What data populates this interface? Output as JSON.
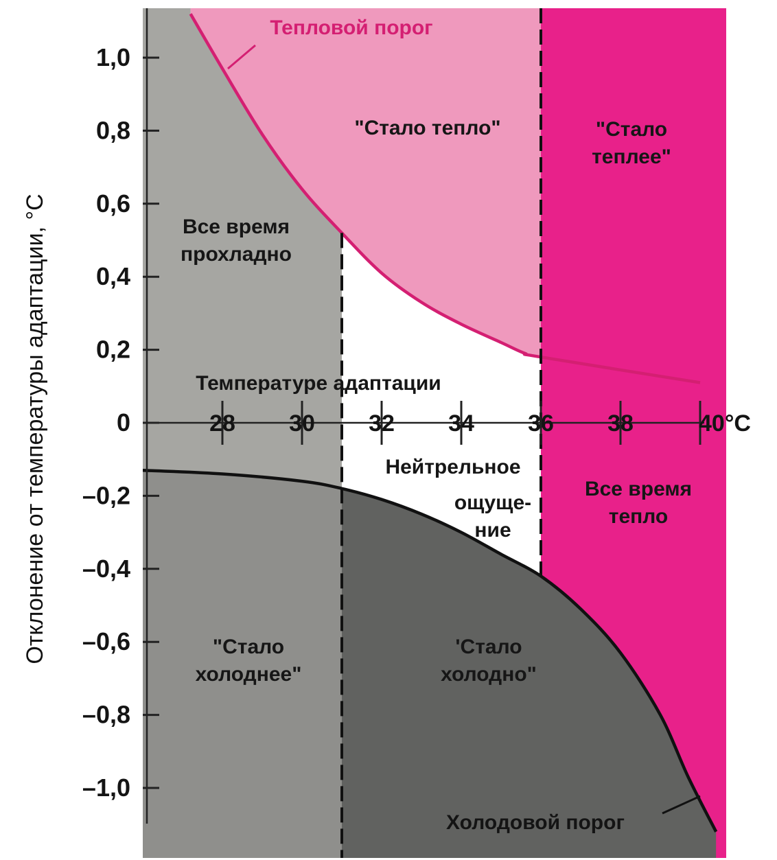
{
  "chart_data": {
    "type": "area",
    "ylabel": "Отклонение от температуры адаптации, °С",
    "axis_caption": "Температуре адаптации",
    "xlim": [
      26,
      40
    ],
    "ylim": [
      -1.12,
      1.12
    ],
    "x_ticks": [
      28,
      30,
      32,
      34,
      36,
      38,
      40
    ],
    "x_tick_labels": [
      "28",
      "30",
      "32",
      "34",
      "36",
      "38",
      "40°С"
    ],
    "y_ticks": [
      1.0,
      0.8,
      0.6,
      0.4,
      0.2,
      0,
      -0.2,
      -0.4,
      -0.6,
      -0.8,
      -1.0
    ],
    "y_tick_labels": [
      "1,0",
      "0,8",
      "0,6",
      "0,4",
      "0,2",
      "0",
      "–0,2",
      "–0,4",
      "–0,6",
      "–0,8",
      "–1,0"
    ],
    "zone_boundaries_x": [
      31,
      36
    ],
    "series": [
      {
        "name": "Тепловой порог",
        "color": "#d41f72",
        "x": [
          27.2,
          28.0,
          29.0,
          30.0,
          31.0,
          32.0,
          33.0,
          34.0,
          35.0,
          35.6,
          36.0,
          40.0
        ],
        "y": [
          1.12,
          0.97,
          0.79,
          0.64,
          0.52,
          0.41,
          0.33,
          0.27,
          0.22,
          0.19,
          0.18,
          0.11
        ]
      },
      {
        "name": "Холодовой порог",
        "color": "#111111",
        "x": [
          26.0,
          28.0,
          30.0,
          31.0,
          32.0,
          33.0,
          34.0,
          35.0,
          36.0,
          37.0,
          38.0,
          39.0,
          39.7,
          40.4
        ],
        "y": [
          -0.13,
          -0.14,
          -0.16,
          -0.18,
          -0.21,
          -0.25,
          -0.3,
          -0.36,
          -0.42,
          -0.51,
          -0.63,
          -0.8,
          -0.97,
          -1.12
        ]
      }
    ],
    "regions": [
      {
        "lines": [
          "Все время",
          "прохладно"
        ]
      },
      {
        "lines": [
          "\"Стало тепло\""
        ]
      },
      {
        "lines": [
          "\"Стало",
          "теплее\""
        ]
      },
      {
        "lines": [
          "Нейтрельное"
        ]
      },
      {
        "lines": [
          "ощуще-",
          "ние"
        ]
      },
      {
        "lines": [
          "Все время",
          "тепло"
        ]
      },
      {
        "lines": [
          "\"Стало",
          "холоднее\""
        ]
      },
      {
        "lines": [
          "'Стало",
          "холодно\""
        ]
      }
    ],
    "colors": {
      "cool_zone": "#a6a6a2",
      "cold_zone": "#616260",
      "warm_light": "#ef99bd",
      "warm_strong": "#e8218a",
      "neutral": "#ffffff"
    }
  }
}
